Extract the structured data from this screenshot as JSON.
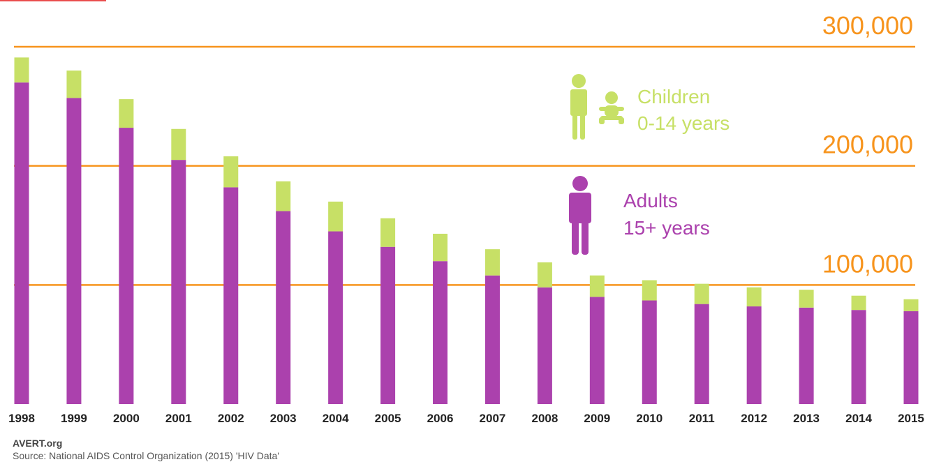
{
  "chart_data": {
    "type": "bar",
    "stacked": true,
    "categories": [
      "1998",
      "1999",
      "2000",
      "2001",
      "2002",
      "2003",
      "2004",
      "2005",
      "2006",
      "2007",
      "2008",
      "2009",
      "2010",
      "2011",
      "2012",
      "2013",
      "2014",
      "2015"
    ],
    "series": [
      {
        "name": "Adults 15+ years",
        "key": "adults",
        "values": [
          270000,
          257000,
          232000,
          205000,
          182000,
          162000,
          145000,
          132000,
          120000,
          108000,
          98000,
          90000,
          87000,
          84000,
          82000,
          81000,
          79000,
          78000
        ]
      },
      {
        "name": "Children 0-14 years",
        "key": "children",
        "values": [
          21000,
          23000,
          24000,
          26000,
          26000,
          25000,
          25000,
          24000,
          23000,
          22000,
          21000,
          18000,
          17000,
          17000,
          16000,
          15000,
          12000,
          10000
        ]
      }
    ],
    "ylim": [
      0,
      300000
    ],
    "gridlines": [
      {
        "value": 100000,
        "label": "100,000"
      },
      {
        "value": 200000,
        "label": "200,000"
      },
      {
        "value": 300000,
        "label": "300,000"
      }
    ],
    "legend": {
      "children_line1": "Children",
      "children_line2": "0-14 years",
      "adults_line1": "Adults",
      "adults_line2": "15+ years"
    },
    "title": "",
    "xlabel": "",
    "ylabel": ""
  },
  "colors": {
    "adults": "#ab41ad",
    "children": "#c7e066",
    "grid": "#f7941d",
    "accent": "#e94e4e"
  },
  "footer": {
    "site": "AVERT.org",
    "source": "Source: National AIDS Control Organization (2015) 'HIV Data'"
  }
}
